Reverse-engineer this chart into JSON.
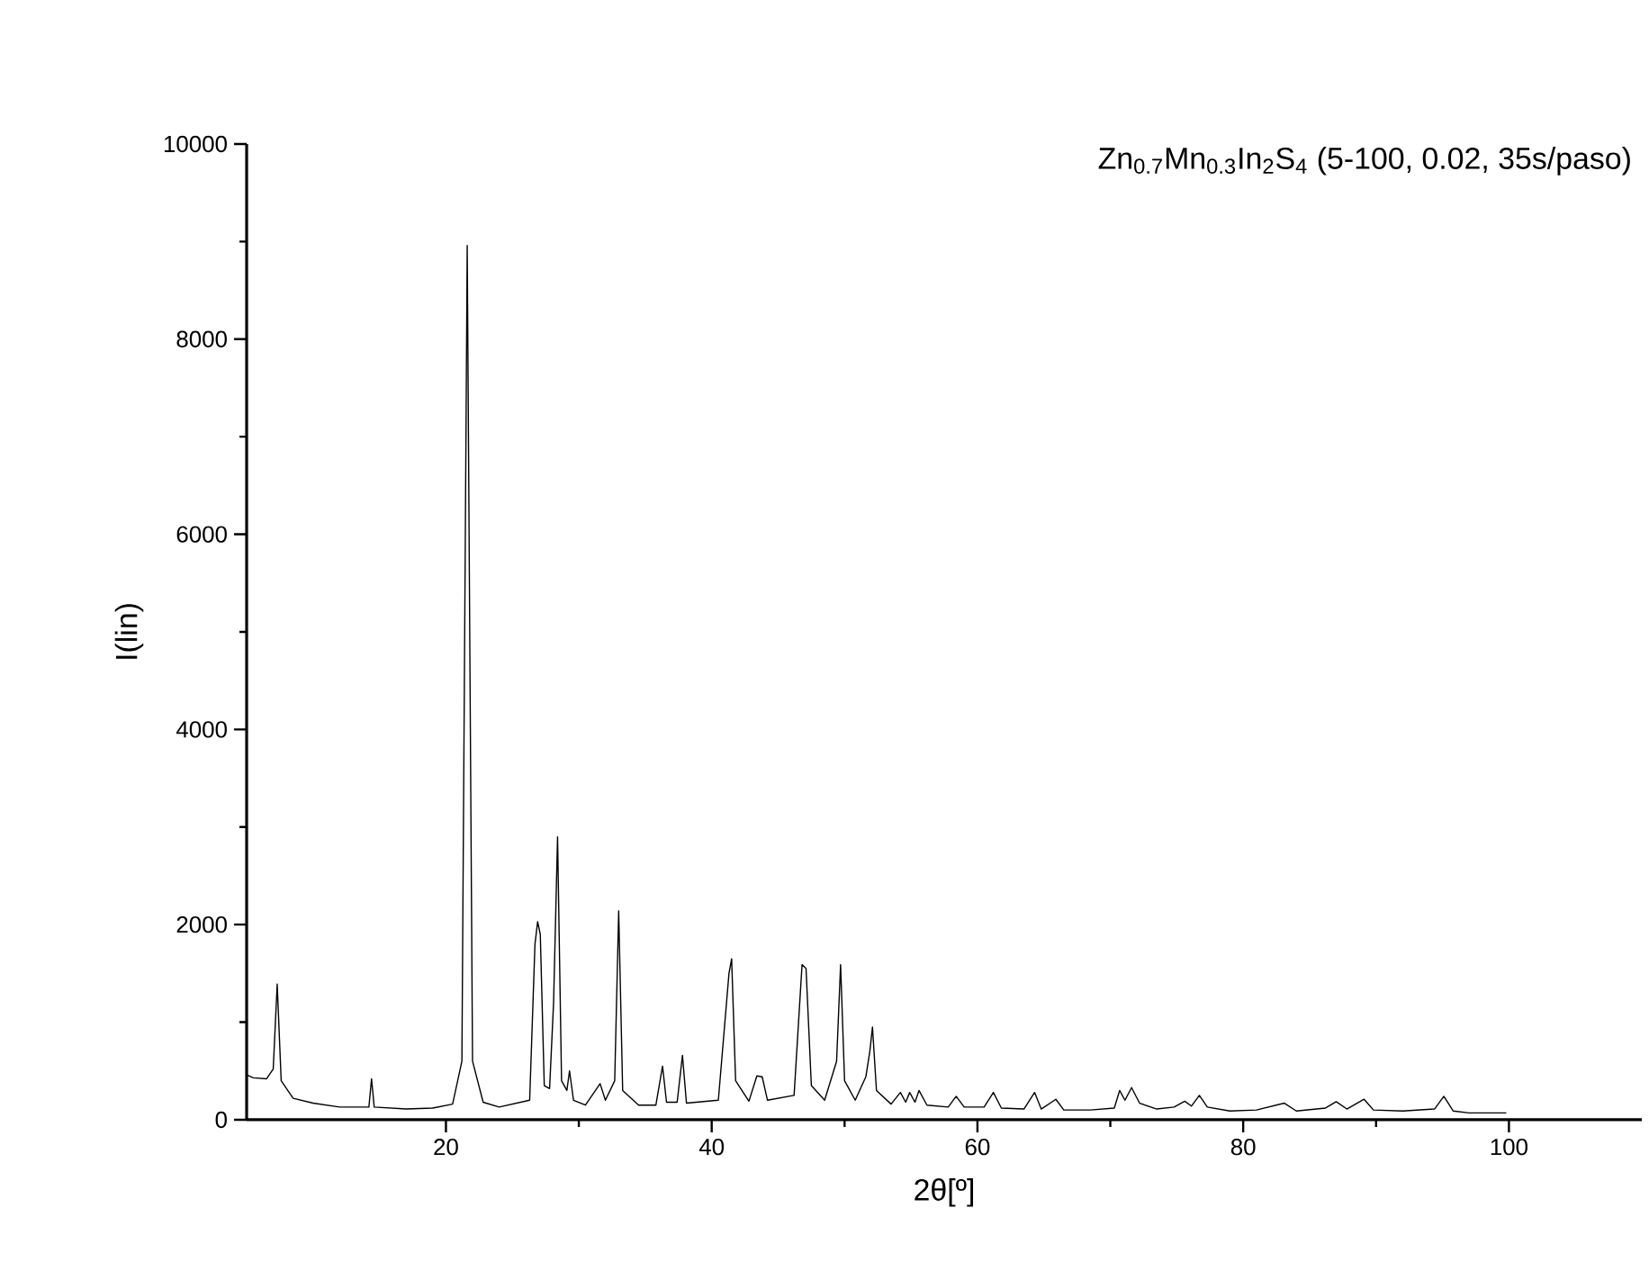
{
  "chart_data": {
    "type": "line",
    "title": "Zn$_{0.7}$Mn$_{0.3}$In$_{2}$S$_{4}$ (5-100, 0.02, 35s/paso)",
    "xlabel": "2θ[º]",
    "ylabel": "I(lin)",
    "color": "#000000",
    "xlim": [
      5,
      110
    ],
    "ylim": [
      0,
      10000
    ],
    "xticks": [
      20,
      40,
      60,
      80,
      100
    ],
    "yticks": [
      0,
      2000,
      4000,
      6000,
      8000,
      10000
    ],
    "x": [
      5.0,
      5.5,
      6.5,
      7.0,
      7.3,
      7.6,
      8.5,
      10,
      12,
      14.2,
      14.4,
      14.6,
      17,
      19,
      20.5,
      21.2,
      21.6,
      22.0,
      22.8,
      24,
      26.3,
      26.7,
      26.9,
      27.1,
      27.4,
      27.8,
      28.1,
      28.4,
      28.7,
      29.1,
      29.3,
      29.6,
      30.5,
      31.6,
      32.0,
      32.7,
      33.0,
      33.3,
      34.5,
      35.8,
      36.3,
      36.6,
      37.4,
      37.8,
      38.1,
      40.5,
      41.3,
      41.5,
      41.8,
      42.8,
      43.4,
      43.8,
      44.2,
      46.2,
      46.8,
      47.1,
      47.5,
      48.5,
      49.4,
      49.7,
      50.0,
      50.8,
      51.6,
      51.9,
      52.1,
      52.4,
      53.5,
      54.2,
      54.6,
      54.9,
      55.3,
      55.6,
      56.2,
      57.8,
      58.4,
      59.0,
      60.5,
      61.2,
      61.8,
      63.5,
      64.3,
      64.8,
      65.9,
      66.5,
      68.5,
      70.3,
      70.7,
      71.1,
      71.6,
      72.2,
      73.5,
      74.8,
      75.6,
      76.1,
      76.7,
      77.3,
      79,
      81,
      83.1,
      84,
      86.2,
      87.0,
      87.8,
      89.1,
      89.8,
      92,
      94.4,
      95.1,
      95.8,
      97,
      99.8
    ],
    "values": [
      460,
      430,
      420,
      520,
      1390,
      400,
      220,
      170,
      130,
      130,
      420,
      130,
      110,
      120,
      160,
      600,
      8960,
      600,
      180,
      130,
      200,
      1800,
      2030,
      1900,
      350,
      320,
      1200,
      2900,
      400,
      300,
      500,
      200,
      150,
      370,
      200,
      400,
      2140,
      300,
      150,
      150,
      550,
      180,
      180,
      660,
      170,
      200,
      1500,
      1650,
      400,
      190,
      450,
      440,
      200,
      250,
      1590,
      1550,
      350,
      200,
      600,
      1590,
      400,
      200,
      440,
      700,
      950,
      300,
      160,
      280,
      180,
      280,
      180,
      300,
      150,
      130,
      240,
      130,
      130,
      280,
      120,
      110,
      280,
      110,
      210,
      100,
      100,
      120,
      300,
      200,
      330,
      170,
      110,
      130,
      190,
      140,
      250,
      130,
      90,
      100,
      170,
      90,
      120,
      185,
      110,
      210,
      100,
      90,
      110,
      240,
      90,
      70,
      70
    ]
  }
}
